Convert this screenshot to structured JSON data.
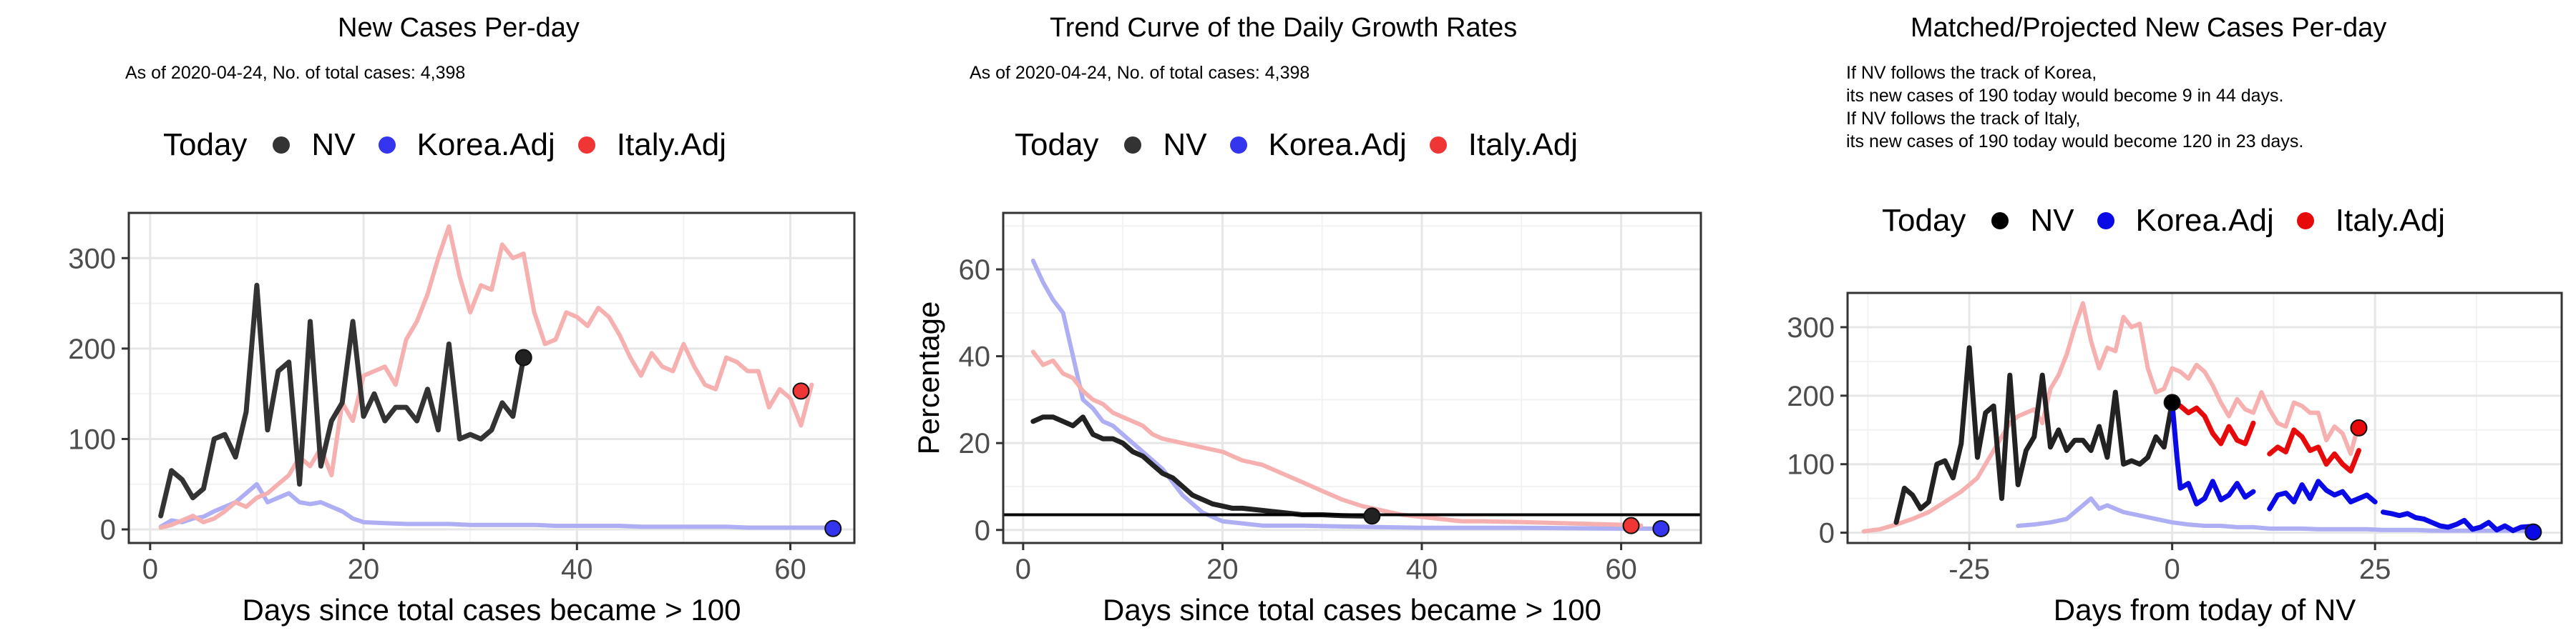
{
  "legend": {
    "title": "Today",
    "items": [
      {
        "label": "NV",
        "color": "#333333"
      },
      {
        "label": "Korea.Adj",
        "color": "#3535f0"
      },
      {
        "label": "Italy.Adj",
        "color": "#f03535"
      }
    ],
    "items_solid": [
      {
        "label": "NV",
        "color": "#000000"
      },
      {
        "label": "Korea.Adj",
        "color": "#0a0ae6"
      },
      {
        "label": "Italy.Adj",
        "color": "#e60a0a"
      }
    ]
  },
  "panels": {
    "p1": {
      "title": "New Cases Per-day",
      "subtitle": "As of 2020-04-24, No. of total cases: 4,398"
    },
    "p2": {
      "title": "Trend Curve of the Daily Growth Rates",
      "subtitle": "As of 2020-04-24, No. of total cases: 4,398"
    },
    "p3": {
      "title": "Matched/Projected New Cases Per-day",
      "note_lines": [
        "If NV follows the track of Korea,",
        "its new cases of 190 today would become 9 in 44 days.",
        "If NV follows the track of Italy,",
        "its new cases of 190 today would become 120 in 23 days."
      ]
    }
  },
  "chart_data": [
    {
      "type": "line",
      "title": "New Cases Per-day",
      "xlabel": "Days since total cases became > 100",
      "ylabel": "",
      "xlim": [
        -2,
        66
      ],
      "ylim": [
        -15,
        350
      ],
      "xticks": [
        0,
        20,
        40,
        60
      ],
      "yticks": [
        0,
        100,
        200,
        300
      ],
      "grid": true,
      "legend": "top",
      "series": [
        {
          "name": "Korea.Adj",
          "color": "#aeaef5",
          "width": 6,
          "x": [
            1,
            2,
            3,
            4,
            5,
            6,
            7,
            8,
            9,
            10,
            11,
            12,
            13,
            14,
            15,
            16,
            17,
            18,
            19,
            20,
            22,
            24,
            26,
            28,
            30,
            32,
            34,
            36,
            38,
            40,
            42,
            44,
            46,
            48,
            50,
            52,
            54,
            56,
            58,
            60,
            62,
            64
          ],
          "y": [
            3,
            10,
            8,
            12,
            14,
            20,
            25,
            30,
            40,
            50,
            30,
            35,
            40,
            30,
            28,
            30,
            25,
            20,
            12,
            8,
            7,
            6,
            6,
            6,
            5,
            5,
            5,
            5,
            4,
            4,
            4,
            4,
            3,
            3,
            3,
            3,
            3,
            2,
            2,
            2,
            2,
            2
          ]
        },
        {
          "name": "Italy.Adj",
          "color": "#f7b0b0",
          "width": 6,
          "x": [
            1,
            2,
            3,
            4,
            5,
            6,
            7,
            8,
            9,
            10,
            11,
            12,
            13,
            14,
            15,
            16,
            17,
            18,
            19,
            20,
            21,
            22,
            23,
            24,
            25,
            26,
            27,
            28,
            29,
            30,
            31,
            32,
            33,
            34,
            35,
            36,
            37,
            38,
            39,
            40,
            41,
            42,
            43,
            44,
            45,
            46,
            47,
            48,
            49,
            50,
            51,
            52,
            53,
            54,
            55,
            56,
            57,
            58,
            59,
            60,
            61,
            62
          ],
          "y": [
            2,
            5,
            10,
            15,
            8,
            12,
            20,
            30,
            25,
            35,
            40,
            50,
            60,
            80,
            70,
            90,
            60,
            140,
            120,
            170,
            175,
            180,
            160,
            210,
            230,
            260,
            300,
            335,
            280,
            240,
            270,
            265,
            315,
            300,
            305,
            240,
            205,
            210,
            240,
            235,
            225,
            245,
            235,
            215,
            190,
            170,
            195,
            180,
            175,
            205,
            180,
            160,
            155,
            190,
            185,
            175,
            175,
            135,
            155,
            145,
            115,
            160
          ]
        },
        {
          "name": "NV",
          "color": "#333333",
          "width": 7,
          "x": [
            1,
            2,
            3,
            4,
            5,
            6,
            7,
            8,
            9,
            10,
            11,
            12,
            13,
            14,
            15,
            16,
            17,
            18,
            19,
            20,
            21,
            22,
            23,
            24,
            25,
            26,
            27,
            28,
            29,
            30,
            31,
            32,
            33,
            34,
            35
          ],
          "y": [
            15,
            65,
            55,
            35,
            45,
            100,
            105,
            80,
            130,
            270,
            110,
            175,
            185,
            50,
            230,
            70,
            120,
            140,
            230,
            125,
            150,
            120,
            135,
            135,
            120,
            155,
            110,
            205,
            100,
            105,
            100,
            110,
            140,
            125,
            190
          ]
        }
      ],
      "today_points": [
        {
          "series": "NV",
          "x": 35,
          "y": 190,
          "color": "#222222"
        },
        {
          "series": "Italy.Adj",
          "x": 61,
          "y": 153,
          "color": "#f03535"
        },
        {
          "series": "Korea.Adj",
          "x": 64,
          "y": 1,
          "color": "#3535f0"
        }
      ]
    },
    {
      "type": "line",
      "title": "Trend Curve of the Daily Growth Rates",
      "xlabel": "Days since total cases became > 100",
      "ylabel": "Percentage",
      "xlim": [
        -2,
        68
      ],
      "ylim": [
        -3,
        73
      ],
      "xticks": [
        0,
        20,
        40,
        60
      ],
      "yticks": [
        0,
        20,
        40,
        60
      ],
      "hline": 3.5,
      "grid": true,
      "legend": "top",
      "series": [
        {
          "name": "Korea.Adj",
          "color": "#aeaef5",
          "width": 6,
          "x": [
            1,
            2,
            3,
            4,
            5,
            6,
            7,
            8,
            9,
            10,
            12,
            14,
            16,
            18,
            20,
            22,
            24,
            28,
            32,
            40,
            50,
            60,
            64
          ],
          "y": [
            62,
            57,
            53,
            50,
            40,
            30,
            28,
            25,
            24,
            22,
            18,
            14,
            8,
            4,
            2,
            1.5,
            1,
            1,
            0.8,
            0.5,
            0.5,
            0.3,
            0.3
          ]
        },
        {
          "name": "Italy.Adj",
          "color": "#f7b0b0",
          "width": 6,
          "x": [
            1,
            2,
            3,
            4,
            5,
            6,
            7,
            8,
            9,
            10,
            11,
            12,
            13,
            14,
            16,
            18,
            20,
            22,
            24,
            26,
            28,
            30,
            32,
            34,
            36,
            38,
            40,
            42,
            44,
            46,
            50,
            55,
            60,
            62
          ],
          "y": [
            41,
            38,
            39,
            36,
            35,
            32,
            30,
            29,
            27,
            26,
            25,
            24,
            22,
            21,
            20,
            19,
            18,
            16,
            15,
            13,
            11,
            9,
            7,
            5.5,
            4.5,
            3.5,
            3,
            2.5,
            2,
            2,
            1.8,
            1.5,
            1.2,
            1
          ]
        },
        {
          "name": "NV",
          "color": "#222222",
          "width": 7,
          "x": [
            1,
            2,
            3,
            4,
            5,
            6,
            7,
            8,
            9,
            10,
            11,
            12,
            13,
            14,
            15,
            16,
            17,
            18,
            19,
            20,
            21,
            22,
            24,
            26,
            28,
            30,
            32,
            34,
            35
          ],
          "y": [
            25,
            26,
            26,
            25,
            24,
            26,
            22,
            21,
            21,
            20,
            18,
            17,
            15,
            13,
            12,
            10,
            8,
            7,
            6,
            5.5,
            5,
            5,
            4.5,
            4,
            3.5,
            3.5,
            3.3,
            3.2,
            3.2
          ]
        }
      ],
      "today_points": [
        {
          "series": "NV",
          "x": 35,
          "y": 3.2,
          "color": "#222222"
        },
        {
          "series": "Italy.Adj",
          "x": 61,
          "y": 1,
          "color": "#f03535"
        },
        {
          "series": "Korea.Adj",
          "x": 64,
          "y": 0.3,
          "color": "#3535f0"
        }
      ]
    },
    {
      "type": "line",
      "title": "Matched/Projected New Cases Per-day",
      "xlabel": "Days from today of NV",
      "ylabel": "",
      "xlim": [
        -40,
        48
      ],
      "ylim": [
        -15,
        350
      ],
      "xticks": [
        -25,
        0,
        25
      ],
      "yticks": [
        0,
        100,
        200,
        300
      ],
      "grid": true,
      "legend": "top",
      "series": [
        {
          "name": "Korea.Adj (past)",
          "color": "#aeaef5",
          "width": 6,
          "x": [
            -19,
            -17,
            -15,
            -13,
            -12,
            -11,
            -10,
            -9,
            -8,
            -6,
            -4,
            -2,
            0,
            2,
            4,
            6,
            8,
            10,
            12,
            14,
            16,
            18,
            20,
            22,
            24,
            26,
            28,
            30,
            32,
            34,
            36,
            38,
            40,
            42,
            44
          ],
          "y": [
            10,
            12,
            15,
            20,
            30,
            40,
            50,
            35,
            40,
            30,
            25,
            20,
            15,
            12,
            10,
            10,
            8,
            8,
            6,
            6,
            6,
            5,
            5,
            5,
            5,
            4,
            4,
            4,
            3,
            3,
            3,
            3,
            3,
            3,
            3
          ]
        },
        {
          "name": "Italy.Adj (past)",
          "color": "#f7b0b0",
          "width": 6,
          "x": [
            -38,
            -36,
            -34,
            -32,
            -30,
            -28,
            -26,
            -24,
            -22,
            -20,
            -19,
            -18,
            -17,
            -16,
            -15,
            -14,
            -13,
            -12,
            -11,
            -10,
            -9,
            -8,
            -7,
            -6,
            -5,
            -4,
            -3,
            -2,
            -1,
            0,
            1,
            2,
            3,
            4,
            5,
            6,
            7,
            8,
            9,
            10,
            11,
            12,
            13,
            14,
            15,
            16,
            17,
            18,
            19,
            20,
            21,
            22,
            23
          ],
          "y": [
            2,
            5,
            12,
            20,
            30,
            45,
            60,
            80,
            120,
            160,
            170,
            175,
            180,
            160,
            210,
            230,
            260,
            300,
            335,
            280,
            240,
            270,
            265,
            315,
            300,
            305,
            240,
            205,
            210,
            240,
            235,
            225,
            245,
            235,
            215,
            190,
            170,
            195,
            180,
            175,
            205,
            180,
            160,
            155,
            190,
            185,
            175,
            175,
            135,
            155,
            145,
            115,
            160
          ]
        },
        {
          "name": "NV",
          "color": "#222222",
          "width": 7,
          "x": [
            -34,
            -33,
            -32,
            -31,
            -30,
            -29,
            -28,
            -27,
            -26,
            -25,
            -24,
            -23,
            -22,
            -21,
            -20,
            -19,
            -18,
            -17,
            -16,
            -15,
            -14,
            -13,
            -12,
            -11,
            -10,
            -9,
            -8,
            -7,
            -6,
            -5,
            -4,
            -3,
            -2,
            -1,
            0
          ],
          "y": [
            15,
            65,
            55,
            35,
            45,
            100,
            105,
            80,
            130,
            270,
            110,
            175,
            185,
            50,
            230,
            70,
            120,
            140,
            230,
            125,
            150,
            120,
            135,
            135,
            120,
            155,
            110,
            205,
            100,
            105,
            100,
            110,
            140,
            125,
            190
          ]
        },
        {
          "name": "Italy.Adj (projected)",
          "color": "#e60a0a",
          "width": 7,
          "segments": [
            {
              "x": [
                0,
                1,
                2,
                3,
                4,
                5,
                6,
                7,
                8,
                9,
                10
              ],
              "y": [
                190,
                185,
                175,
                182,
                170,
                145,
                130,
                155,
                135,
                130,
                160
              ]
            },
            {
              "x": [
                12,
                13,
                14,
                15,
                16,
                17,
                18,
                19,
                20,
                21,
                22,
                23
              ],
              "y": [
                115,
                125,
                118,
                150,
                140,
                120,
                125,
                100,
                115,
                100,
                90,
                120
              ]
            }
          ]
        },
        {
          "name": "Korea.Adj (projected)",
          "color": "#0a0ae6",
          "width": 7,
          "segments": [
            {
              "x": [
                0,
                0.6,
                1,
                2,
                3,
                4,
                5,
                6,
                7,
                8,
                9,
                10
              ],
              "y": [
                190,
                110,
                65,
                72,
                42,
                50,
                75,
                48,
                55,
                72,
                52,
                60
              ]
            },
            {
              "x": [
                12,
                13,
                14,
                15,
                16,
                17,
                18,
                19,
                20,
                21,
                22,
                23,
                24,
                25
              ],
              "y": [
                35,
                55,
                58,
                45,
                70,
                50,
                75,
                62,
                55,
                60,
                45,
                50,
                55,
                45
              ]
            },
            {
              "x": [
                26,
                27,
                28,
                29,
                30,
                31,
                32,
                33,
                34,
                35,
                36,
                37,
                38,
                39,
                40,
                41,
                42,
                43,
                44
              ],
              "y": [
                30,
                28,
                25,
                28,
                22,
                20,
                15,
                10,
                8,
                12,
                18,
                5,
                8,
                15,
                4,
                10,
                3,
                8,
                9
              ]
            }
          ]
        }
      ],
      "today_points": [
        {
          "series": "NV",
          "x": 0,
          "y": 190,
          "color": "#000000"
        },
        {
          "series": "Italy.Adj",
          "x": 23,
          "y": 153,
          "color": "#e60a0a"
        },
        {
          "series": "Korea.Adj",
          "x": 44.5,
          "y": 1,
          "color": "#0a0ae6"
        }
      ]
    }
  ]
}
